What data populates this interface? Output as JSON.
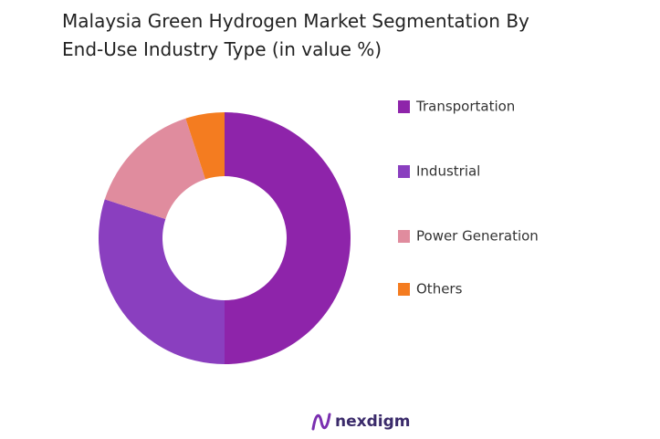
{
  "chart_data": {
    "type": "donut",
    "title": "Malaysia Green Hydrogen Market Segmentation By End-Use Industry Type (in value %)",
    "categories": [
      "Transportation",
      "Industrial",
      "Power Generation",
      "Others"
    ],
    "values": [
      50,
      30,
      15,
      5
    ],
    "colors": [
      "#8E24AA",
      "#8A3FBF",
      "#E08C9E",
      "#F47C20"
    ],
    "legend": "right"
  },
  "brand": "nexdigm"
}
